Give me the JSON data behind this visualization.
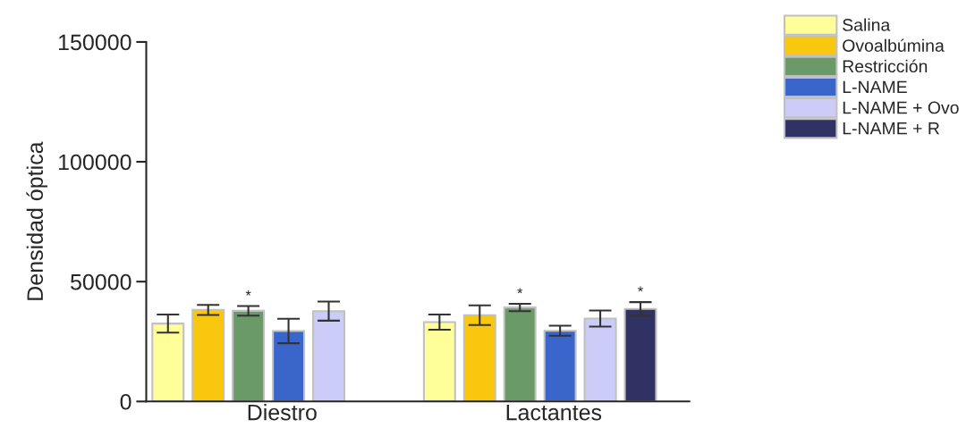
{
  "chart_data": {
    "type": "bar",
    "ylabel": "Densidad óptica",
    "categories": [
      "Diestro",
      "Lactantes"
    ],
    "series": [
      {
        "name": "Salina",
        "color": "#ffff99",
        "values": [
          32500,
          33100
        ],
        "errors": [
          3800,
          3150
        ]
      },
      {
        "name": "Ovoalbúmina",
        "color": "#f9c80e",
        "values": [
          38200,
          36000
        ],
        "errors": [
          2100,
          4100
        ]
      },
      {
        "name": "Restricción",
        "color": "#6a9a68",
        "values": [
          37800,
          39200
        ],
        "errors": [
          2000,
          1550
        ],
        "value_labels": [
          "*",
          "*"
        ]
      },
      {
        "name": "L-NAME",
        "color": "#3a66cc",
        "values": [
          29400,
          29500
        ],
        "errors": [
          5100,
          2100
        ]
      },
      {
        "name": "L-NAME + Ovo",
        "color": "#ccccf8",
        "values": [
          37700,
          34600
        ],
        "errors": [
          4000,
          3350
        ]
      },
      {
        "name": "L-NAME + R",
        "color": "#2f3262",
        "values": [
          null,
          38600
        ],
        "errors": [
          null,
          2850
        ],
        "value_labels": [
          null,
          "*"
        ]
      }
    ],
    "ylim": [
      0,
      150000
    ],
    "yticks": [
      0,
      50000,
      100000,
      150000
    ],
    "grid": false,
    "legend": "top right"
  }
}
